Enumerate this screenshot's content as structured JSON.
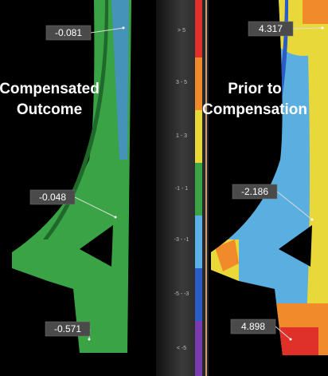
{
  "left_panel": {
    "heading": [
      "Compensated",
      "Outcome"
    ],
    "callouts": [
      -0.081,
      -0.048,
      -0.571
    ]
  },
  "legend": {
    "labels": [
      "> 5",
      "3 - 5",
      "1 - 3",
      "-1 - 1",
      "-3 - -1",
      "-5 - -3",
      "< -5"
    ]
  },
  "right_panel": {
    "heading": [
      "Prior to",
      "Compensation"
    ],
    "callouts": [
      4.317,
      -2.186,
      4.898
    ]
  }
}
